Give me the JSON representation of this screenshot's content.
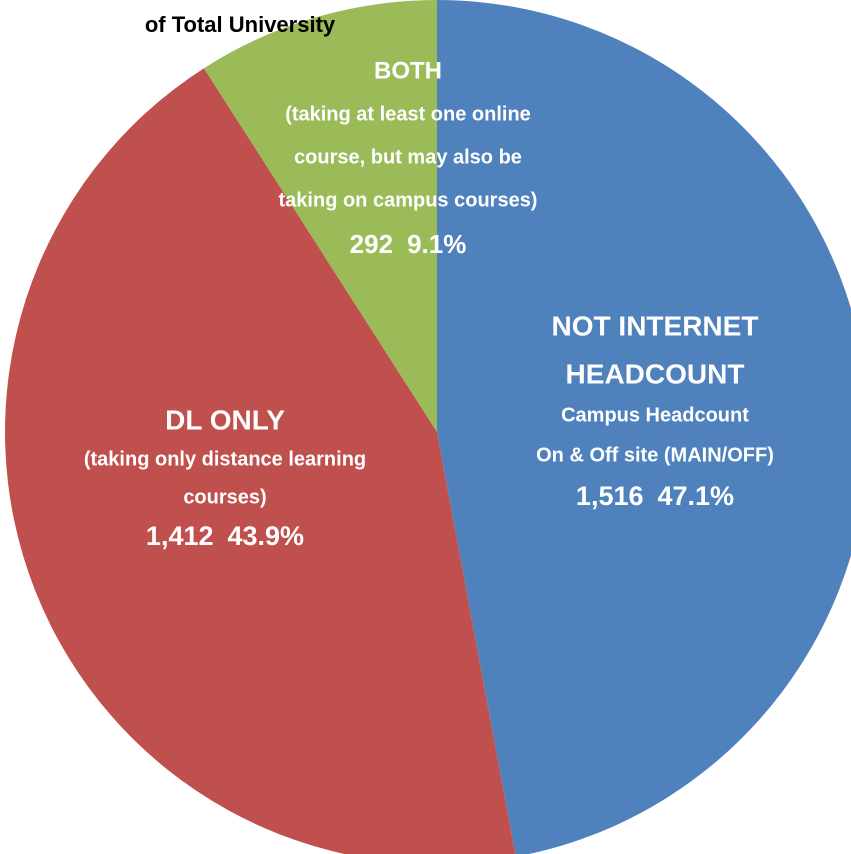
{
  "chart_data": {
    "type": "pie",
    "title": "of Total University",
    "categories": [
      "NOT INTERNET HEADCOUNT",
      "DL ONLY",
      "BOTH"
    ],
    "label_lines": [
      [
        "NOT INTERNET",
        "HEADCOUNT"
      ],
      [
        "DL ONLY"
      ],
      [
        "BOTH"
      ]
    ],
    "notes": [
      [
        "Campus Headcount",
        "On & Off site (MAIN/OFF)"
      ],
      [
        "(taking only distance learning",
        "courses)"
      ],
      [
        "(taking at least one online",
        "course, but may also be",
        "taking on campus courses)"
      ]
    ],
    "values": [
      1516,
      1412,
      292
    ],
    "value_labels": [
      "1,516",
      "1,412",
      "292"
    ],
    "percents": [
      47.1,
      43.9,
      9.1
    ],
    "percent_labels": [
      "47.1%",
      "43.9%",
      "9.1%"
    ],
    "colors": [
      "#4f81bd",
      "#c0504d",
      "#9bbb59"
    ]
  }
}
